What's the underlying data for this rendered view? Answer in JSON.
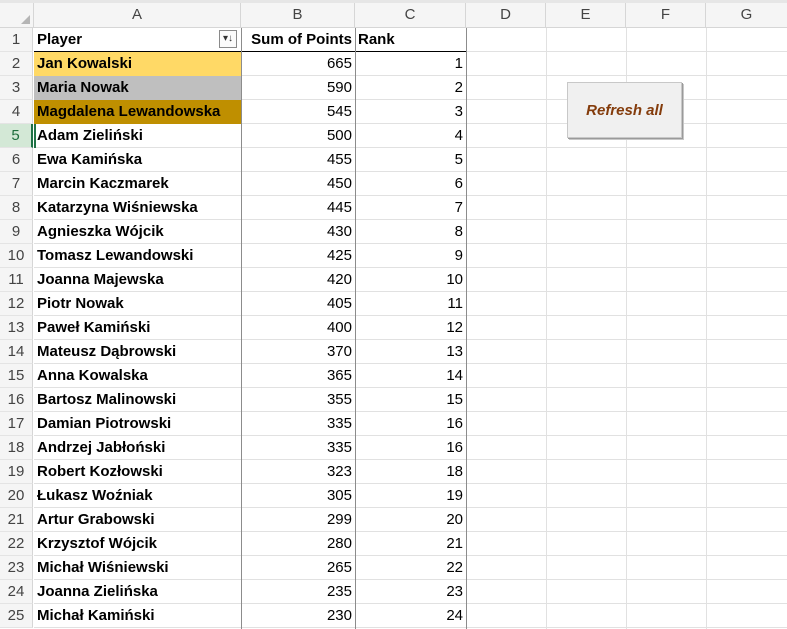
{
  "columns": [
    "A",
    "B",
    "C",
    "D",
    "E",
    "F",
    "G"
  ],
  "header": {
    "player": "Player",
    "points": "Sum of Points",
    "rank": "Rank"
  },
  "rows": [
    {
      "num": "1"
    },
    {
      "num": "2",
      "player": "Jan Kowalski",
      "points": "665",
      "rank": "1"
    },
    {
      "num": "3",
      "player": "Maria Nowak",
      "points": "590",
      "rank": "2"
    },
    {
      "num": "4",
      "player": "Magdalena Lewandowska",
      "points": "545",
      "rank": "3"
    },
    {
      "num": "5",
      "player": "Adam Zieliński",
      "points": "500",
      "rank": "4"
    },
    {
      "num": "6",
      "player": "Ewa Kamińska",
      "points": "455",
      "rank": "5"
    },
    {
      "num": "7",
      "player": "Marcin Kaczmarek",
      "points": "450",
      "rank": "6"
    },
    {
      "num": "8",
      "player": "Katarzyna Wiśniewska",
      "points": "445",
      "rank": "7"
    },
    {
      "num": "9",
      "player": "Agnieszka Wójcik",
      "points": "430",
      "rank": "8"
    },
    {
      "num": "10",
      "player": "Tomasz Lewandowski",
      "points": "425",
      "rank": "9"
    },
    {
      "num": "11",
      "player": "Joanna Majewska",
      "points": "420",
      "rank": "10"
    },
    {
      "num": "12",
      "player": "Piotr Nowak",
      "points": "405",
      "rank": "11"
    },
    {
      "num": "13",
      "player": "Paweł Kamiński",
      "points": "400",
      "rank": "12"
    },
    {
      "num": "14",
      "player": "Mateusz Dąbrowski",
      "points": "370",
      "rank": "13"
    },
    {
      "num": "15",
      "player": "Anna Kowalska",
      "points": "365",
      "rank": "14"
    },
    {
      "num": "16",
      "player": "Bartosz Malinowski",
      "points": "355",
      "rank": "15"
    },
    {
      "num": "17",
      "player": "Damian Piotrowski",
      "points": "335",
      "rank": "16"
    },
    {
      "num": "18",
      "player": "Andrzej Jabłoński",
      "points": "335",
      "rank": "16"
    },
    {
      "num": "19",
      "player": "Robert Kozłowski",
      "points": "323",
      "rank": "18"
    },
    {
      "num": "20",
      "player": "Łukasz Woźniak",
      "points": "305",
      "rank": "19"
    },
    {
      "num": "21",
      "player": "Artur Grabowski",
      "points": "299",
      "rank": "20"
    },
    {
      "num": "22",
      "player": "Krzysztof Wójcik",
      "points": "280",
      "rank": "21"
    },
    {
      "num": "23",
      "player": "Michał Wiśniewski",
      "points": "265",
      "rank": "22"
    },
    {
      "num": "24",
      "player": "Joanna Zielińska",
      "points": "235",
      "rank": "23"
    },
    {
      "num": "25",
      "player": "Michał Kamiński",
      "points": "230",
      "rank": "24"
    }
  ],
  "selected_row": "5",
  "highlight_colors": {
    "gold": "#ffd966",
    "silver": "#bfbfbf",
    "bronze": "#bf8f00"
  },
  "refresh_button": {
    "label": "Refresh all",
    "color": "#843c0c"
  },
  "filter_icon": "sort-descending-filter-icon"
}
